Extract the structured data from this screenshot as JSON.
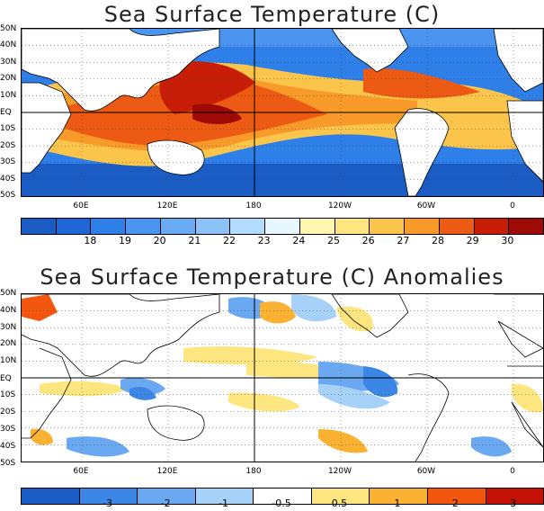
{
  "panels": [
    {
      "title": "Sea Surface Temperature (C)",
      "colorbar": {
        "colors": [
          "#1a5bc4",
          "#2066d6",
          "#2f7fe8",
          "#4b94f0",
          "#69aaf5",
          "#8cc2f8",
          "#b4dcfc",
          "#e8f6ff",
          "#fff6b0",
          "#fde57f",
          "#fbc44a",
          "#f79a2a",
          "#ec5a14",
          "#c81e08",
          "#9e0a06"
        ],
        "labels": [
          "18",
          "19",
          "20",
          "21",
          "22",
          "23",
          "24",
          "25",
          "26",
          "27",
          "28",
          "29",
          "30"
        ]
      }
    },
    {
      "title": "Sea Surface Temperature (C) Anomalies",
      "colorbar": {
        "colors": [
          "#1a5bc4",
          "#3c86e6",
          "#6aa8f2",
          "#a6d1f8",
          "#ffffff",
          "#fde57f",
          "#fbb131",
          "#f2560f",
          "#c41106"
        ],
        "labels": [
          "-3",
          "-2",
          "-1",
          "-0.5",
          "0.5",
          "1",
          "2",
          "3"
        ]
      }
    }
  ],
  "lat_labels": [
    "50N",
    "40N",
    "30N",
    "20N",
    "10N",
    "EQ",
    "10S",
    "20S",
    "30S",
    "40S",
    "50S"
  ],
  "lon_labels": [
    "60E",
    "120E",
    "180",
    "120W",
    "60W",
    "0"
  ]
}
